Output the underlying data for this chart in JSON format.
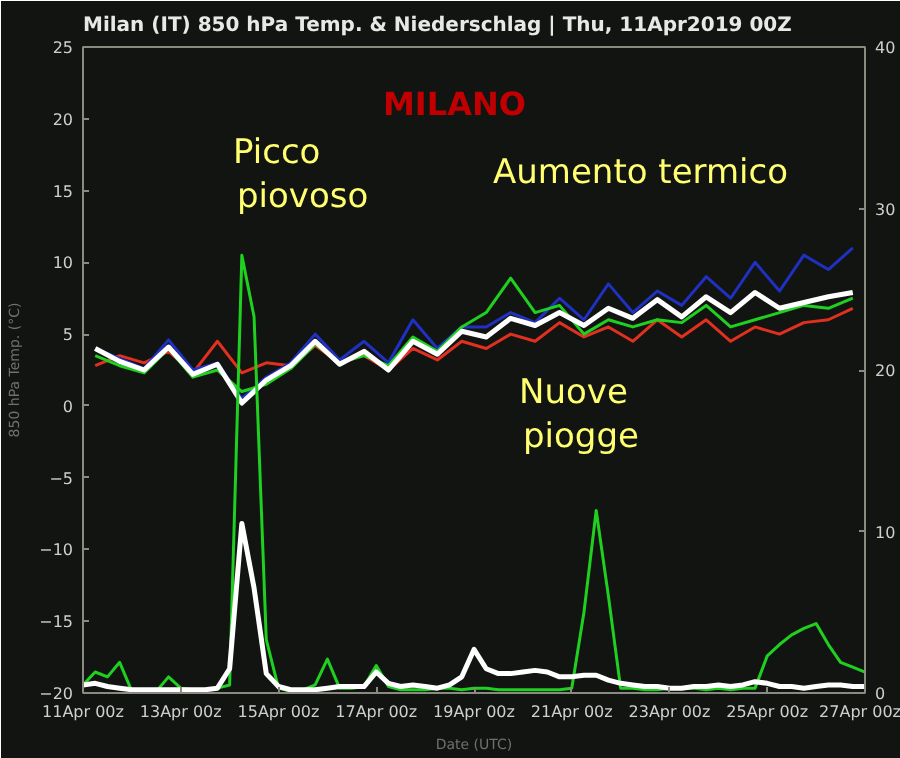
{
  "chart_data": {
    "type": "line",
    "title": "Milan  (IT)  850 hPa Temp. & Niederschlag | Thu, 11Apr2019 00Z",
    "xlabel": "Date (UTC)",
    "ylabel": "850 hPa Temp. (°C)",
    "annotations": [
      "MILANO",
      "Picco piovoso",
      "Aumento termico",
      "Nuove piogge"
    ],
    "x": [
      "2019-04-11T06:00",
      "2019-04-11T18:00",
      "2019-04-12T06:00",
      "2019-04-12T18:00",
      "2019-04-13T06:00",
      "2019-04-13T18:00",
      "2019-04-14T06:00",
      "2019-04-14T18:00",
      "2019-04-15T06:00",
      "2019-04-15T18:00",
      "2019-04-16T06:00",
      "2019-04-16T18:00",
      "2019-04-17T06:00",
      "2019-04-17T18:00",
      "2019-04-18T06:00",
      "2019-04-18T18:00",
      "2019-04-19T06:00",
      "2019-04-19T18:00",
      "2019-04-20T06:00",
      "2019-04-20T18:00",
      "2019-04-21T06:00",
      "2019-04-21T18:00",
      "2019-04-22T06:00",
      "2019-04-22T18:00",
      "2019-04-23T06:00",
      "2019-04-23T18:00",
      "2019-04-24T06:00",
      "2019-04-24T18:00",
      "2019-04-25T06:00",
      "2019-04-25T18:00",
      "2019-04-26T06:00",
      "2019-04-26T18:00"
    ],
    "series": [
      {
        "color": "#e03020",
        "values": [
          2.8,
          3.5,
          3.0,
          3.8,
          2.3,
          4.5,
          2.3,
          3.0,
          2.8,
          4.2,
          3.0,
          3.5,
          2.5,
          4.0,
          3.2,
          4.5,
          4.0,
          5.0,
          4.5,
          5.8,
          4.8,
          5.5,
          4.5,
          6.0,
          4.8,
          6.0,
          4.5,
          5.5,
          5.0,
          5.8,
          6.0,
          6.8
        ]
      },
      {
        "color": "#2030c0",
        "values": [
          4.0,
          3.3,
          2.6,
          4.6,
          2.5,
          3.0,
          0.5,
          2.0,
          3.0,
          5.0,
          3.2,
          4.5,
          3.0,
          6.0,
          4.0,
          5.5,
          5.5,
          6.5,
          5.8,
          7.5,
          6.0,
          8.5,
          6.5,
          8.0,
          7.0,
          9.0,
          7.5,
          10.0,
          8.0,
          10.5,
          9.5,
          11.0
        ]
      },
      {
        "color": "#20d020",
        "values": [
          3.5,
          2.8,
          2.3,
          4.0,
          2.0,
          2.5,
          1.0,
          1.5,
          2.6,
          4.3,
          3.0,
          3.5,
          2.8,
          4.8,
          3.8,
          5.5,
          6.5,
          8.9,
          6.5,
          7.0,
          5.0,
          6.0,
          5.5,
          6.0,
          5.8,
          7.0,
          5.5,
          6.0,
          6.5,
          7.0,
          6.8,
          7.5
        ]
      },
      {
        "color": "#ffffff",
        "values": [
          4.0,
          3.1,
          2.5,
          4.1,
          2.2,
          2.9,
          0.2,
          1.8,
          2.8,
          4.5,
          2.9,
          3.8,
          2.5,
          4.5,
          3.6,
          5.2,
          4.8,
          6.1,
          5.6,
          6.5,
          5.6,
          6.8,
          6.1,
          7.4,
          6.2,
          7.6,
          6.5,
          7.9,
          6.8,
          7.2,
          7.6,
          7.9
        ]
      },
      {
        "color": "#20d020",
        "axis": "y2",
        "x": [
          "2019-04-11T00:00",
          "2019-04-11T06:00",
          "2019-04-11T12:00",
          "2019-04-11T18:00",
          "2019-04-12T00:00",
          "2019-04-12T06:00",
          "2019-04-12T12:00",
          "2019-04-12T18:00",
          "2019-04-13T00:00",
          "2019-04-13T06:00",
          "2019-04-13T12:00",
          "2019-04-13T18:00",
          "2019-04-14T00:00",
          "2019-04-14T06:00",
          "2019-04-14T12:00",
          "2019-04-14T18:00",
          "2019-04-15T00:00",
          "2019-04-15T06:00",
          "2019-04-15T12:00",
          "2019-04-15T18:00",
          "2019-04-16T00:00",
          "2019-04-16T06:00",
          "2019-04-16T12:00",
          "2019-04-16T18:00",
          "2019-04-17T00:00",
          "2019-04-17T06:00",
          "2019-04-17T12:00",
          "2019-04-17T18:00",
          "2019-04-18T00:00",
          "2019-04-18T06:00",
          "2019-04-18T12:00",
          "2019-04-18T18:00",
          "2019-04-19T00:00",
          "2019-04-19T06:00",
          "2019-04-19T12:00",
          "2019-04-19T18:00",
          "2019-04-20T00:00",
          "2019-04-20T06:00",
          "2019-04-20T12:00",
          "2019-04-20T18:00",
          "2019-04-21T00:00",
          "2019-04-21T06:00",
          "2019-04-21T12:00",
          "2019-04-21T18:00",
          "2019-04-22T00:00",
          "2019-04-22T06:00",
          "2019-04-22T12:00",
          "2019-04-22T18:00",
          "2019-04-23T00:00",
          "2019-04-23T06:00",
          "2019-04-23T12:00",
          "2019-04-23T18:00",
          "2019-04-24T00:00",
          "2019-04-24T06:00",
          "2019-04-24T12:00",
          "2019-04-24T18:00",
          "2019-04-25T00:00",
          "2019-04-25T06:00",
          "2019-04-25T12:00",
          "2019-04-25T18:00",
          "2019-04-26T00:00",
          "2019-04-26T06:00",
          "2019-04-26T12:00",
          "2019-04-26T18:00",
          "2019-04-27T00:00"
        ],
        "values": [
          0.5,
          1.3,
          1.0,
          1.9,
          0.1,
          0.1,
          0.1,
          1.0,
          0.3,
          0.2,
          0.2,
          0.3,
          0.5,
          27.1,
          23.3,
          3.3,
          0.3,
          0.1,
          0.2,
          0.5,
          2.1,
          0.3,
          0.3,
          0.4,
          1.7,
          0.4,
          0.2,
          0.2,
          0.2,
          0.3,
          0.3,
          0.2,
          0.3,
          0.3,
          0.2,
          0.2,
          0.2,
          0.2,
          0.2,
          0.2,
          0.3,
          5.0,
          11.3,
          6.0,
          0.3,
          0.3,
          0.2,
          0.2,
          0.3,
          0.3,
          0.3,
          0.2,
          0.3,
          0.2,
          0.3,
          0.3,
          2.3,
          3.0,
          3.6,
          4.0,
          4.3,
          3.0,
          1.9,
          1.6,
          1.3
        ]
      },
      {
        "color": "#ffffff",
        "axis": "y2",
        "x": [
          "2019-04-11T00:00",
          "2019-04-11T06:00",
          "2019-04-11T12:00",
          "2019-04-11T18:00",
          "2019-04-12T00:00",
          "2019-04-12T06:00",
          "2019-04-12T12:00",
          "2019-04-12T18:00",
          "2019-04-13T00:00",
          "2019-04-13T06:00",
          "2019-04-13T12:00",
          "2019-04-13T18:00",
          "2019-04-14T00:00",
          "2019-04-14T06:00",
          "2019-04-14T12:00",
          "2019-04-14T18:00",
          "2019-04-15T00:00",
          "2019-04-15T06:00",
          "2019-04-15T12:00",
          "2019-04-15T18:00",
          "2019-04-16T00:00",
          "2019-04-16T06:00",
          "2019-04-16T12:00",
          "2019-04-16T18:00",
          "2019-04-17T00:00",
          "2019-04-17T06:00",
          "2019-04-17T12:00",
          "2019-04-17T18:00",
          "2019-04-18T00:00",
          "2019-04-18T06:00",
          "2019-04-18T12:00",
          "2019-04-18T18:00",
          "2019-04-19T00:00",
          "2019-04-19T06:00",
          "2019-04-19T12:00",
          "2019-04-19T18:00",
          "2019-04-20T00:00",
          "2019-04-20T06:00",
          "2019-04-20T12:00",
          "2019-04-20T18:00",
          "2019-04-21T00:00",
          "2019-04-21T06:00",
          "2019-04-21T12:00",
          "2019-04-21T18:00",
          "2019-04-22T00:00",
          "2019-04-22T06:00",
          "2019-04-22T12:00",
          "2019-04-22T18:00",
          "2019-04-23T00:00",
          "2019-04-23T06:00",
          "2019-04-23T12:00",
          "2019-04-23T18:00",
          "2019-04-24T00:00",
          "2019-04-24T06:00",
          "2019-04-24T12:00",
          "2019-04-24T18:00",
          "2019-04-25T00:00",
          "2019-04-25T06:00",
          "2019-04-25T12:00",
          "2019-04-25T18:00",
          "2019-04-26T00:00",
          "2019-04-26T06:00",
          "2019-04-26T12:00",
          "2019-04-26T18:00",
          "2019-04-27T00:00"
        ],
        "values": [
          0.5,
          0.6,
          0.4,
          0.3,
          0.2,
          0.2,
          0.2,
          0.2,
          0.2,
          0.2,
          0.2,
          0.3,
          1.5,
          10.5,
          6.5,
          1.2,
          0.4,
          0.2,
          0.2,
          0.2,
          0.3,
          0.4,
          0.4,
          0.4,
          1.3,
          0.6,
          0.4,
          0.5,
          0.4,
          0.3,
          0.5,
          1.0,
          2.7,
          1.5,
          1.2,
          1.2,
          1.3,
          1.4,
          1.3,
          1.0,
          1.0,
          1.1,
          1.1,
          0.8,
          0.6,
          0.5,
          0.4,
          0.4,
          0.3,
          0.3,
          0.4,
          0.4,
          0.5,
          0.4,
          0.5,
          0.7,
          0.6,
          0.4,
          0.4,
          0.3,
          0.4,
          0.5,
          0.5,
          0.4,
          0.4
        ]
      }
    ],
    "xlim": [
      "2019-04-11T00:00",
      "2019-04-27T00:00"
    ],
    "xticks": [
      {
        "value": "2019-04-11",
        "label": "11Apr 00z"
      },
      {
        "value": "2019-04-13",
        "label": "13Apr 00z"
      },
      {
        "value": "2019-04-15",
        "label": "15Apr 00z"
      },
      {
        "value": "2019-04-17",
        "label": "17Apr 00z"
      },
      {
        "value": "2019-04-19",
        "label": "19Apr 00z"
      },
      {
        "value": "2019-04-21",
        "label": "21Apr 00z"
      },
      {
        "value": "2019-04-23",
        "label": "23Apr 00z"
      },
      {
        "value": "2019-04-25",
        "label": "25Apr 00z"
      },
      {
        "value": "2019-04-27",
        "label": "27Apr 00z"
      }
    ],
    "ylim": [
      -20,
      25
    ],
    "yticks": [
      -20,
      -15,
      -10,
      -5,
      0,
      5,
      10,
      15,
      20,
      25
    ],
    "y2lim": [
      0,
      40
    ],
    "y2ticks": [
      0,
      10,
      20,
      30,
      40
    ],
    "grid": false,
    "marker": "none",
    "line_style": "solid"
  }
}
